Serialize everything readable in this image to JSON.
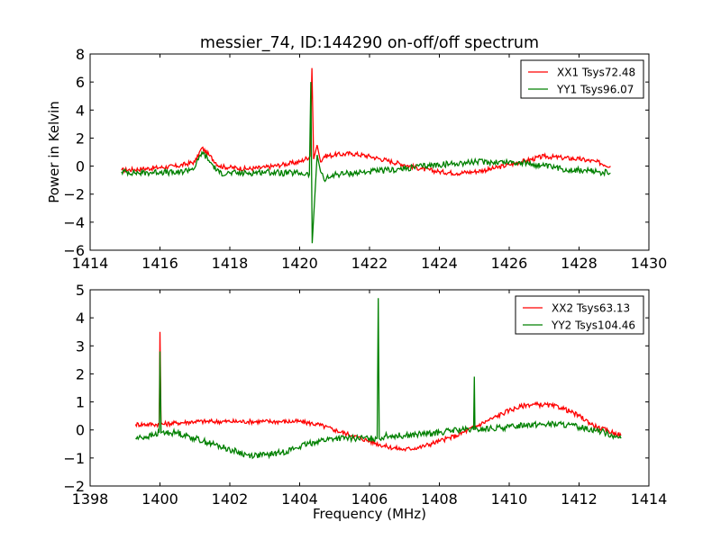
{
  "chart_data": [
    {
      "type": "line",
      "title": "messier_74, ID:144290 on-off/off spectrum",
      "xlabel": "",
      "ylabel": "Power in Kelvin",
      "xlim": [
        1414,
        1430
      ],
      "ylim": [
        -6,
        8
      ],
      "xticks": [
        1414,
        1416,
        1418,
        1420,
        1422,
        1424,
        1426,
        1428,
        1430
      ],
      "yticks": [
        -6,
        -4,
        -2,
        0,
        2,
        4,
        6,
        8
      ],
      "grid": false,
      "legend_position": "top-right",
      "series": [
        {
          "name": "XX1 Tsys72.48",
          "color": "#ff0000",
          "x": [
            1414.9,
            1415.5,
            1416.0,
            1416.5,
            1417.0,
            1417.2,
            1417.4,
            1417.7,
            1418.0,
            1418.5,
            1419.0,
            1419.5,
            1420.0,
            1420.3,
            1420.35,
            1420.4,
            1420.5,
            1420.6,
            1420.7,
            1421.0,
            1421.5,
            1422.0,
            1422.5,
            1423.0,
            1423.5,
            1424.0,
            1424.5,
            1425.0,
            1425.5,
            1426.0,
            1426.5,
            1427.0,
            1427.5,
            1428.0,
            1428.5,
            1428.9
          ],
          "y": [
            -0.3,
            -0.2,
            -0.1,
            0.0,
            0.3,
            1.3,
            0.8,
            0.0,
            -0.1,
            -0.2,
            -0.1,
            0.1,
            0.3,
            0.7,
            7.0,
            0.5,
            1.5,
            0.3,
            0.7,
            0.8,
            0.9,
            0.7,
            0.4,
            0.1,
            -0.2,
            -0.4,
            -0.5,
            -0.4,
            -0.2,
            0.1,
            0.4,
            0.7,
            0.6,
            0.5,
            0.3,
            0.0
          ]
        },
        {
          "name": "YY1 Tsys96.07",
          "color": "#008000",
          "x": [
            1414.9,
            1415.5,
            1416.0,
            1416.5,
            1417.0,
            1417.2,
            1417.4,
            1417.7,
            1418.0,
            1418.5,
            1419.0,
            1419.5,
            1420.0,
            1420.28,
            1420.32,
            1420.36,
            1420.5,
            1420.6,
            1420.7,
            1421.0,
            1421.5,
            1422.0,
            1422.5,
            1423.0,
            1423.5,
            1424.0,
            1424.5,
            1425.0,
            1425.5,
            1426.0,
            1426.5,
            1427.0,
            1427.5,
            1428.0,
            1428.5,
            1428.9
          ],
          "y": [
            -0.4,
            -0.5,
            -0.4,
            -0.5,
            -0.1,
            1.0,
            0.4,
            -0.5,
            -0.5,
            -0.5,
            -0.4,
            -0.5,
            -0.5,
            -0.6,
            6.0,
            -5.5,
            0.8,
            -0.4,
            -1.0,
            -0.6,
            -0.5,
            -0.4,
            -0.3,
            -0.2,
            0.0,
            0.1,
            0.2,
            0.3,
            0.3,
            0.3,
            0.2,
            0.0,
            -0.2,
            -0.3,
            -0.4,
            -0.5
          ]
        }
      ]
    },
    {
      "type": "line",
      "title": "",
      "xlabel": "Frequency (MHz)",
      "ylabel": "",
      "xlim": [
        1398,
        1414
      ],
      "ylim": [
        -2,
        5
      ],
      "xticks": [
        1398,
        1400,
        1402,
        1404,
        1406,
        1408,
        1410,
        1412,
        1414
      ],
      "yticks": [
        -2,
        -1,
        0,
        1,
        2,
        3,
        4,
        5
      ],
      "grid": false,
      "legend_position": "top-right",
      "series": [
        {
          "name": "XX2 Tsys63.13",
          "color": "#ff0000",
          "x": [
            1399.3,
            1399.8,
            1399.98,
            1400.0,
            1400.03,
            1400.5,
            1401.0,
            1401.5,
            1402.0,
            1402.5,
            1403.0,
            1403.5,
            1404.0,
            1404.5,
            1405.0,
            1405.5,
            1406.0,
            1406.5,
            1407.0,
            1407.5,
            1408.0,
            1408.5,
            1409.0,
            1409.5,
            1410.0,
            1410.5,
            1411.0,
            1411.5,
            1412.0,
            1412.5,
            1413.0,
            1413.2
          ],
          "y": [
            0.2,
            0.2,
            0.2,
            3.5,
            0.2,
            0.25,
            0.3,
            0.3,
            0.3,
            0.3,
            0.3,
            0.3,
            0.3,
            0.2,
            0.0,
            -0.2,
            -0.4,
            -0.6,
            -0.7,
            -0.6,
            -0.4,
            -0.2,
            0.1,
            0.4,
            0.7,
            0.9,
            0.9,
            0.8,
            0.5,
            0.1,
            -0.1,
            -0.2
          ]
        },
        {
          "name": "YY2 Tsys104.46",
          "color": "#008000",
          "x": [
            1399.3,
            1399.8,
            1399.98,
            1400.0,
            1400.03,
            1400.5,
            1401.0,
            1401.5,
            1402.0,
            1402.5,
            1403.0,
            1403.5,
            1404.0,
            1404.5,
            1405.0,
            1405.5,
            1406.0,
            1406.22,
            1406.25,
            1406.28,
            1406.5,
            1407.0,
            1407.5,
            1408.0,
            1408.5,
            1408.98,
            1409.0,
            1409.02,
            1409.5,
            1410.0,
            1410.5,
            1411.0,
            1411.5,
            1412.0,
            1412.5,
            1413.0,
            1413.2
          ],
          "y": [
            -0.3,
            -0.2,
            -0.1,
            2.8,
            -0.1,
            -0.1,
            -0.3,
            -0.5,
            -0.7,
            -0.9,
            -0.9,
            -0.8,
            -0.6,
            -0.4,
            -0.3,
            -0.3,
            -0.3,
            -0.3,
            4.7,
            -0.3,
            -0.2,
            -0.2,
            -0.15,
            -0.1,
            0.0,
            0.0,
            1.9,
            0.0,
            0.05,
            0.1,
            0.2,
            0.2,
            0.2,
            0.1,
            0.0,
            -0.2,
            -0.3
          ]
        }
      ]
    }
  ]
}
